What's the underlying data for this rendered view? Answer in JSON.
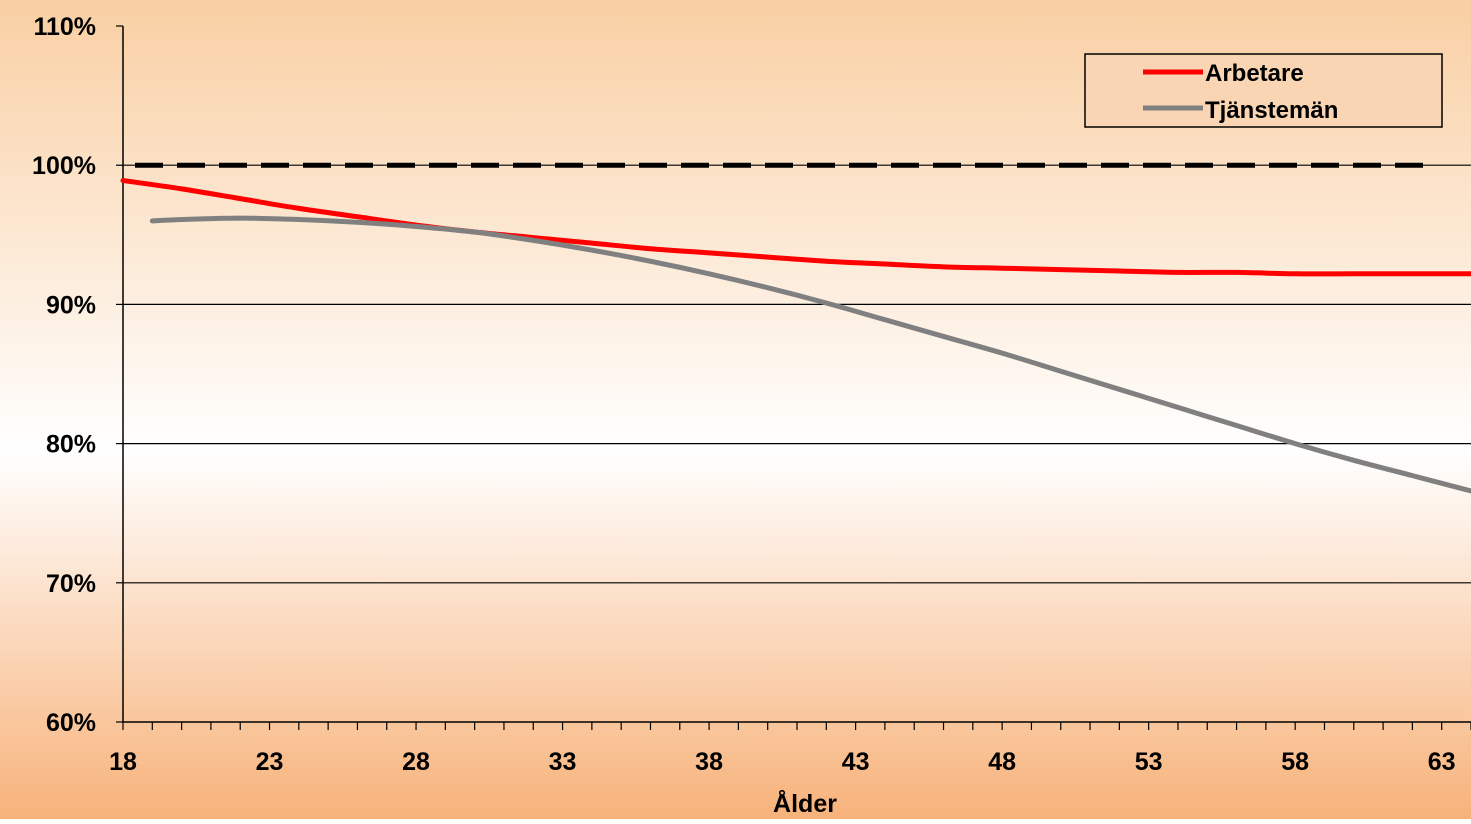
{
  "chart_data": {
    "type": "line",
    "title": "",
    "xlabel": "Ålder",
    "ylabel": "",
    "xlim": [
      18,
      64
    ],
    "ylim": [
      0.6,
      1.1
    ],
    "x_tick_labels": [
      "18",
      "23",
      "28",
      "33",
      "38",
      "43",
      "48",
      "53",
      "58",
      "63"
    ],
    "y_tick_labels": [
      "60%",
      "70%",
      "80%",
      "90%",
      "100%",
      "110%"
    ],
    "grid": true,
    "legend_position": "top-right",
    "reference_line": {
      "y": 1.0,
      "style": "dashed",
      "color": "#000000"
    },
    "colors": {
      "background_top": "#f9cfa3",
      "background_mid": "#ffffff",
      "background_bottom": "#f7b27a"
    },
    "series": [
      {
        "name": "Arbetare",
        "color": "#ff0000",
        "x": [
          18,
          20,
          22,
          24,
          26,
          28,
          30,
          32,
          34,
          36,
          38,
          40,
          42,
          44,
          46,
          48,
          50,
          52,
          54,
          56,
          58,
          60,
          62,
          64
        ],
        "y": [
          0.989,
          0.983,
          0.976,
          0.969,
          0.963,
          0.957,
          0.952,
          0.948,
          0.944,
          0.94,
          0.937,
          0.934,
          0.931,
          0.929,
          0.927,
          0.926,
          0.925,
          0.924,
          0.923,
          0.923,
          0.922,
          0.922,
          0.922,
          0.922
        ]
      },
      {
        "name": "Tjänstemän",
        "color": "#808080",
        "x": [
          19,
          20,
          22,
          24,
          26,
          28,
          30,
          32,
          34,
          36,
          38,
          40,
          42,
          44,
          46,
          48,
          50,
          52,
          54,
          56,
          58,
          60,
          62,
          64
        ],
        "y": [
          0.96,
          0.961,
          0.962,
          0.961,
          0.959,
          0.956,
          0.952,
          0.946,
          0.939,
          0.931,
          0.922,
          0.912,
          0.901,
          0.889,
          0.877,
          0.865,
          0.852,
          0.839,
          0.826,
          0.813,
          0.8,
          0.788,
          0.777,
          0.766
        ]
      }
    ]
  }
}
